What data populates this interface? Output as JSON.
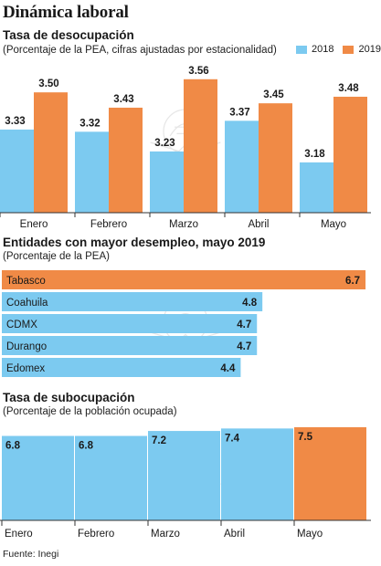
{
  "title": "Dinámica laboral",
  "colors": {
    "y2018": "#7ccaf0",
    "y2019": "#f08a46",
    "text": "#1a1a1a",
    "axis": "#333333"
  },
  "legend": [
    {
      "label": "2018",
      "color": "#7ccaf0"
    },
    {
      "label": "2019",
      "color": "#f08a46"
    }
  ],
  "sections": {
    "desocupacion": {
      "title": "Tasa de desocupación",
      "subtitle": "(Porcentaje de la PEA, cifras ajustadas por estacionalidad)"
    },
    "entidades": {
      "title": "Entidades con mayor desempleo, mayo 2019",
      "subtitle": "(Porcentaje de la PEA)"
    },
    "subocupacion": {
      "title": "Tasa de subocupación",
      "subtitle": "(Porcentaje de la población ocupada)"
    }
  },
  "source": "Fuente: Inegi",
  "chart_data": [
    {
      "type": "bar",
      "title": "Tasa de desocupación",
      "subtitle": "(Porcentaje de la PEA, cifras ajustadas por estacionalidad)",
      "categories": [
        "Enero",
        "Febrero",
        "Marzo",
        "Abril",
        "Mayo"
      ],
      "series": [
        {
          "name": "2018",
          "color": "#7ccaf0",
          "values": [
            3.33,
            3.32,
            3.23,
            3.37,
            3.18
          ],
          "labels": [
            "3.33",
            "3.32",
            "3.23",
            "3.37",
            "3.18"
          ]
        },
        {
          "name": "2019",
          "color": "#f08a46",
          "values": [
            3.5,
            3.43,
            3.56,
            3.45,
            3.48
          ],
          "labels": [
            "3.50",
            "3.43",
            "3.56",
            "3.45",
            "3.48"
          ]
        }
      ],
      "ylim": [
        2.95,
        3.58
      ],
      "legend": "top-right",
      "grid": false
    },
    {
      "type": "bar",
      "orientation": "horizontal",
      "title": "Entidades con mayor desempleo, mayo 2019",
      "subtitle": "(Porcentaje de la PEA)",
      "categories": [
        "Tabasco",
        "Coahuila",
        "CDMX",
        "Durango",
        "Edomex"
      ],
      "values": [
        6.7,
        4.8,
        4.7,
        4.7,
        4.4
      ],
      "labels": [
        "6.7",
        "4.8",
        "4.7",
        "4.7",
        "4.4"
      ],
      "colors": [
        "#f08a46",
        "#7ccaf0",
        "#7ccaf0",
        "#7ccaf0",
        "#7ccaf0"
      ],
      "xlim": [
        0,
        6.8
      ],
      "grid": false
    },
    {
      "type": "bar",
      "title": "Tasa de subocupación",
      "subtitle": "(Porcentaje de la población ocupada)",
      "categories": [
        "Enero",
        "Febrero",
        "Marzo",
        "Abril",
        "Mayo"
      ],
      "values": [
        6.8,
        6.8,
        7.2,
        7.4,
        7.5
      ],
      "labels": [
        "6.8",
        "6.8",
        "7.2",
        "7.4",
        "7.5"
      ],
      "colors": [
        "#7ccaf0",
        "#7ccaf0",
        "#7ccaf0",
        "#7ccaf0",
        "#f08a46"
      ],
      "ylim": [
        0,
        7.5
      ],
      "grid": false
    }
  ]
}
